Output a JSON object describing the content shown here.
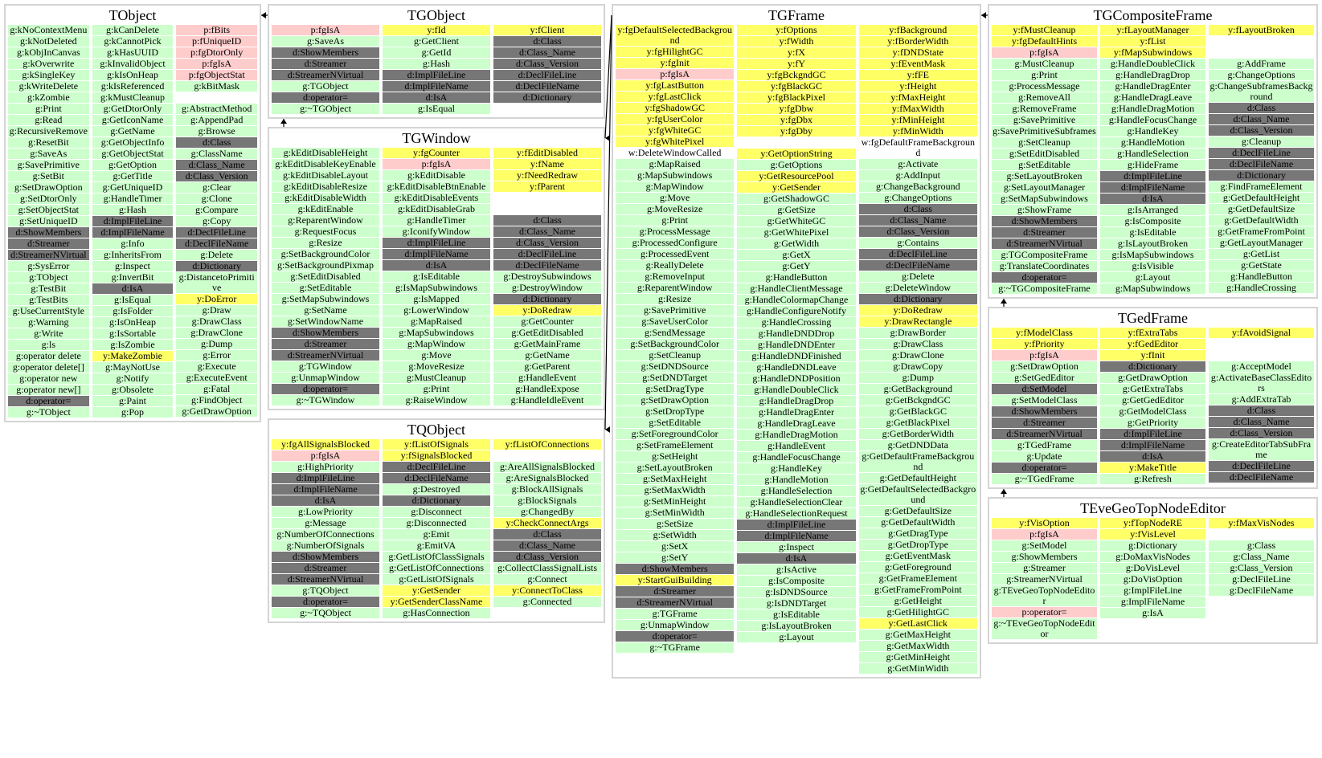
{
  "colors": {
    "g": "#ccffcc",
    "p": "#ffcccc",
    "y": "#ffff66",
    "d": "#777777",
    "w": "transparent",
    "border": "#d4d4d4"
  },
  "classes": [
    {
      "id": "tobject",
      "title": "TObject",
      "columns": [
        [
          "g:kNoContextMenu",
          "g:kNotDeleted",
          "g:kObjInCanvas",
          "g:kOverwrite",
          "g:kSingleKey",
          "g:kWriteDelete",
          "g:kZombie",
          "g:Print",
          "g:Read",
          "g:RecursiveRemove",
          "g:ResetBit",
          "g:SaveAs",
          "g:SavePrimitive",
          "g:SetBit",
          "g:SetDrawOption",
          "g:SetDtorOnly",
          "g:SetObjectStat",
          "g:SetUniqueID",
          "d:ShowMembers",
          "d:Streamer",
          "d:StreamerNVirtual",
          "g:SysError",
          "g:TObject",
          "g:TestBit",
          "g:TestBits",
          "g:UseCurrentStyle",
          "g:Warning",
          "g:Write",
          "g:ls",
          "g:operator delete",
          "g:operator delete[]",
          "g:operator new",
          "g:operator new[]",
          "d:operator=",
          "g:~TObject"
        ],
        [
          "g:kCanDelete",
          "g:kCannotPick",
          "g:kHasUUID",
          "g:kInvalidObject",
          "g:kIsOnHeap",
          "g:kIsReferenced",
          "g:kMustCleanup",
          "g:GetDtorOnly",
          "g:GetIconName",
          "g:GetName",
          "g:GetObjectInfo",
          "g:GetObjectStat",
          "g:GetOption",
          "g:GetTitle",
          "g:GetUniqueID",
          "g:HandleTimer",
          "g:Hash",
          "d:ImplFileLine",
          "d:ImplFileName",
          "g:Info",
          "g:InheritsFrom",
          "g:Inspect",
          "g:InvertBit",
          "d:IsA",
          "g:IsEqual",
          "g:IsFolder",
          "g:IsOnHeap",
          "g:IsSortable",
          "g:IsZombie",
          "y:MakeZombie",
          "g:MayNotUse",
          "g:Notify",
          "g:Obsolete",
          "g:Paint",
          "g:Pop"
        ],
        [
          "p:fBits",
          "p:fUniqueID",
          "p:fgDtorOnly",
          "p:fgIsA",
          "p:fgObjectStat",
          "g:kBitMask",
          null,
          "g:AbstractMethod",
          "g:AppendPad",
          "g:Browse",
          "d:Class",
          "g:ClassName",
          "d:Class_Name",
          "d:Class_Version",
          "g:Clear",
          "g:Clone",
          "g:Compare",
          "g:Copy",
          "d:DeclFileLine",
          "d:DeclFileName",
          "g:Delete",
          "d:Dictionary",
          "g:DistancetoPrimitive",
          "y:DoError",
          "g:Draw",
          "g:DrawClass",
          "g:DrawClone",
          "g:Dump",
          "g:Error",
          "g:Execute",
          "g:ExecuteEvent",
          "g:Fatal",
          "g:FindObject",
          "g:GetDrawOption"
        ]
      ]
    },
    {
      "id": "tgobject",
      "title": "TGObject",
      "columns": [
        [
          "p:fgIsA",
          "g:SaveAs",
          "d:ShowMembers",
          "d:Streamer",
          "d:StreamerNVirtual",
          "g:TGObject",
          "d:operator=",
          "g:~TGObject"
        ],
        [
          "y:fId",
          "g:GetClient",
          "g:GetId",
          "g:Hash",
          "d:ImplFileLine",
          "d:ImplFileName",
          "d:IsA",
          "g:IsEqual"
        ],
        [
          "y:fClient",
          "d:Class",
          "d:Class_Name",
          "d:Class_Version",
          "d:DeclFileLine",
          "d:DeclFileName",
          "d:Dictionary"
        ]
      ]
    },
    {
      "id": "tgwindow",
      "title": "TGWindow",
      "columns": [
        [
          "g:kEditDisableHeight",
          "g:kEditDisableKeyEnable",
          "g:kEditDisableLayout",
          "g:kEditDisableResize",
          "g:kEditDisableWidth",
          "g:kEditEnable",
          "g:ReparentWindow",
          "g:RequestFocus",
          "g:Resize",
          "g:SetBackgroundColor",
          "g:SetBackgroundPixmap",
          "g:SetEditDisabled",
          "g:SetEditable",
          "g:SetMapSubwindows",
          "g:SetName",
          "g:SetWindowName",
          "d:ShowMembers",
          "d:Streamer",
          "d:StreamerNVirtual",
          "g:TGWindow",
          "g:UnmapWindow",
          "d:operator=",
          "g:~TGWindow"
        ],
        [
          "y:fgCounter",
          "p:fgIsA",
          "g:kEditDisable",
          "g:kEditDisableBtnEnable",
          "g:kEditDisableEvents",
          "g:kEditDisableGrab",
          "g:HandleTimer",
          "g:IconifyWindow",
          "d:ImplFileLine",
          "d:ImplFileName",
          "d:IsA",
          "g:IsEditable",
          "g:IsMapSubwindows",
          "g:IsMapped",
          "g:LowerWindow",
          "g:MapRaised",
          "g:MapSubwindows",
          "g:MapWindow",
          "g:Move",
          "g:MoveResize",
          "g:MustCleanup",
          "g:Print",
          "g:RaiseWindow"
        ],
        [
          "y:fEditDisabled",
          "y:fName",
          "y:fNeedRedraw",
          "y:fParent",
          null,
          null,
          "d:Class",
          "d:Class_Name",
          "d:Class_Version",
          "d:DeclFileLine",
          "d:DeclFileName",
          "g:DestroySubwindows",
          "g:DestroyWindow",
          "d:Dictionary",
          "y:DoRedraw",
          "g:GetCounter",
          "g:GetEditDisabled",
          "g:GetMainFrame",
          "g:GetName",
          "g:GetParent",
          "g:HandleEvent",
          "g:HandleExpose",
          "g:HandleIdleEvent"
        ]
      ]
    },
    {
      "id": "tgframe",
      "title": "TGFrame",
      "columns": [
        [
          "y:fgDefaultSelectedBackground",
          "y:fgHilightGC",
          "y:fgInit",
          "p:fgIsA",
          "y:fgLastButton",
          "y:fgLastClick",
          "y:fgShadowGC",
          "y:fgUserColor",
          "y:fgWhiteGC",
          "y:fgWhitePixel",
          "w:DeleteWindowCalled",
          "g:MapRaised",
          "g:MapSubwindows",
          "g:MapWindow",
          "g:Move",
          "g:MoveResize",
          "g:Print",
          "g:ProcessMessage",
          "g:ProcessedConfigure",
          "g:ProcessedEvent",
          "g:ReallyDelete",
          "g:RemoveInput",
          "g:ReparentWindow",
          "g:Resize",
          "g:SavePrimitive",
          "g:SaveUserColor",
          "g:SendMessage",
          "g:SetBackgroundColor",
          "g:SetCleanup",
          "g:SetDNDSource",
          "g:SetDNDTarget",
          "g:SetDragType",
          "g:SetDrawOption",
          "g:SetDropType",
          "g:SetEditable",
          "g:SetForegroundColor",
          "g:SetFrameElement",
          "g:SetHeight",
          "g:SetLayoutBroken",
          "g:SetMaxHeight",
          "g:SetMaxWidth",
          "g:SetMinHeight",
          "g:SetMinWidth",
          "g:SetSize",
          "g:SetWidth",
          "g:SetX",
          "g:SetY",
          "d:ShowMembers",
          "y:StartGuiBuilding",
          "d:Streamer",
          "d:StreamerNVirtual",
          "g:TGFrame",
          "g:UnmapWindow",
          "d:operator=",
          "g:~TGFrame"
        ],
        [
          "y:fOptions",
          "y:fWidth",
          "y:fX",
          "y:fY",
          "y:fgBckgndGC",
          "y:fgBlackGC",
          "y:fgBlackPixel",
          "y:fgDbw",
          "y:fgDbx",
          "y:fgDby",
          null,
          "y:GetOptionString",
          "g:GetOptions",
          "y:GetResourcePool",
          "y:GetSender",
          "g:GetShadowGC",
          "g:GetSize",
          "g:GetWhiteGC",
          "g:GetWhitePixel",
          "g:GetWidth",
          "g:GetX",
          "g:GetY",
          "g:HandleButton",
          "g:HandleClientMessage",
          "g:HandleColormapChange",
          "g:HandleConfigureNotify",
          "g:HandleCrossing",
          "g:HandleDNDDrop",
          "g:HandleDNDEnter",
          "g:HandleDNDFinished",
          "g:HandleDNDLeave",
          "g:HandleDNDPosition",
          "g:HandleDoubleClick",
          "g:HandleDragDrop",
          "g:HandleDragEnter",
          "g:HandleDragLeave",
          "g:HandleDragMotion",
          "g:HandleEvent",
          "g:HandleFocusChange",
          "g:HandleKey",
          "g:HandleMotion",
          "g:HandleSelection",
          "g:HandleSelectionClear",
          "g:HandleSelectionRequest",
          "d:ImplFileLine",
          "d:ImplFileName",
          "g:Inspect",
          "d:IsA",
          "g:IsActive",
          "g:IsComposite",
          "g:IsDNDSource",
          "g:IsDNDTarget",
          "g:IsEditable",
          "g:IsLayoutBroken",
          "g:Layout"
        ],
        [
          "y:fBackground",
          "y:fBorderWidth",
          "y:fDNDState",
          "y:fEventMask",
          "y:fFE",
          "y:fHeight",
          "y:fMaxHeight",
          "y:fMaxWidth",
          "y:fMinHeight",
          "y:fMinWidth",
          "w:fgDefaultFrameBackground",
          "g:Activate",
          "g:AddInput",
          "g:ChangeBackground",
          "g:ChangeOptions",
          "d:Class",
          "d:Class_Name",
          "d:Class_Version",
          "g:Contains",
          "d:DeclFileLine",
          "d:DeclFileName",
          "g:Delete",
          "g:DeleteWindow",
          "d:Dictionary",
          "y:DoRedraw",
          "y:DrawRectangle",
          "g:DrawBorder",
          "g:DrawClass",
          "g:DrawClone",
          "g:DrawCopy",
          "g:Dump",
          "g:GetBackground",
          "g:GetBckgndGC",
          "g:GetBlackGC",
          "g:GetBlackPixel",
          "g:GetBorderWidth",
          "g:GetDNDData",
          "g:GetDefaultFrameBackground",
          "g:GetDefaultHeight",
          "g:GetDefaultSelectedBackground",
          "g:GetDefaultSize",
          "g:GetDefaultWidth",
          "g:GetDragType",
          "g:GetDropType",
          "g:GetEventMask",
          "g:GetForeground",
          "g:GetFrameElement",
          "g:GetFrameFromPoint",
          "g:GetHeight",
          "g:GetHilightGC",
          "y:GetLastClick",
          "g:GetMaxHeight",
          "g:GetMaxWidth",
          "g:GetMinHeight",
          "g:GetMinWidth"
        ]
      ]
    },
    {
      "id": "tgcompositeframe",
      "title": "TGCompositeFrame",
      "columns": [
        [
          "y:fMustCleanup",
          "y:fgDefaultHints",
          "p:fgIsA",
          "g:MustCleanup",
          "g:Print",
          "g:ProcessMessage",
          "g:RemoveAll",
          "g:RemoveFrame",
          "g:SavePrimitive",
          "g:SavePrimitiveSubframes",
          "g:SetCleanup",
          "g:SetEditDisabled",
          "g:SetEditable",
          "g:SetLayoutBroken",
          "g:SetLayoutManager",
          "g:SetMapSubwindows",
          "g:ShowFrame",
          "d:ShowMembers",
          "d:Streamer",
          "d:StreamerNVirtual",
          "g:TGCompositeFrame",
          "g:TranslateCoordinates",
          "d:operator=",
          "g:~TGCompositeFrame"
        ],
        [
          "y:fLayoutManager",
          "y:fList",
          "y:fMapSubwindows",
          "g:HandleDoubleClick",
          "g:HandleDragDrop",
          "g:HandleDragEnter",
          "g:HandleDragLeave",
          "g:HandleDragMotion",
          "g:HandleFocusChange",
          "g:HandleKey",
          "g:HandleMotion",
          "g:HandleSelection",
          "g:HideFrame",
          "d:ImplFileLine",
          "d:ImplFileName",
          "d:IsA",
          "g:IsArranged",
          "g:IsComposite",
          "g:IsEditable",
          "g:IsLayoutBroken",
          "g:IsMapSubwindows",
          "g:IsVisible",
          "g:Layout",
          "g:MapSubwindows"
        ],
        [
          "y:fLayoutBroken",
          null,
          null,
          "g:AddFrame",
          "g:ChangeOptions",
          "g:ChangeSubframesBackground",
          "d:Class",
          "d:Class_Name",
          "d:Class_Version",
          "g:Cleanup",
          "d:DeclFileLine",
          "d:DeclFileName",
          "d:Dictionary",
          "g:FindFrameElement",
          "g:GetDefaultHeight",
          "g:GetDefaultSize",
          "g:GetDefaultWidth",
          "g:GetFrameFromPoint",
          "g:GetLayoutManager",
          "g:GetList",
          "g:GetState",
          "g:HandleButton",
          "g:HandleCrossing"
        ]
      ]
    },
    {
      "id": "tgedframe",
      "title": "TGedFrame",
      "columns": [
        [
          "y:fModelClass",
          "y:fPriority",
          "p:fgIsA",
          "g:SetDrawOption",
          "g:SetGedEditor",
          "d:SetModel",
          "g:SetModelClass",
          "d:ShowMembers",
          "d:Streamer",
          "d:StreamerNVirtual",
          "g:TGedFrame",
          "g:Update",
          "d:operator=",
          "g:~TGedFrame"
        ],
        [
          "y:fExtraTabs",
          "y:fGedEditor",
          "y:fInit",
          "d:Dictionary",
          "g:GetDrawOption",
          "g:GetExtraTabs",
          "g:GetGedEditor",
          "g:GetModelClass",
          "g:GetPriority",
          "d:ImplFileLine",
          "d:ImplFileName",
          "d:IsA",
          "y:MakeTitle",
          "g:Refresh"
        ],
        [
          "y:fAvoidSignal",
          null,
          null,
          "g:AcceptModel",
          "g:ActivateBaseClassEditors",
          "g:AddExtraTab",
          "d:Class",
          "d:Class_Name",
          "d:Class_Version",
          "g:CreateEditorTabSubFrame",
          "d:DeclFileLine",
          "d:DeclFileName"
        ]
      ]
    },
    {
      "id": "teve",
      "title": "TEveGeoTopNodeEditor",
      "columns": [
        [
          "y:fVisOption",
          "p:fgIsA",
          "g:SetModel",
          "g:ShowMembers",
          "g:Streamer",
          "g:StreamerNVirtual",
          "g:TEveGeoTopNodeEditor",
          "p:operator=",
          "g:~TEveGeoTopNodeEditor"
        ],
        [
          "y:fTopNodeRE",
          "y:fVisLevel",
          "g:Dictionary",
          "g:DoMaxVisNodes",
          "g:DoVisLevel",
          "g:DoVisOption",
          "g:ImplFileLine",
          "g:ImplFileName",
          "g:IsA"
        ],
        [
          "y:fMaxVisNodes",
          null,
          "g:Class",
          "g:Class_Name",
          "g:Class_Version",
          "g:DeclFileLine",
          "g:DeclFileName"
        ]
      ]
    },
    {
      "id": "tqobject",
      "title": "TQObject",
      "columns": [
        [
          "y:fgAllSignalsBlocked",
          "p:fgIsA",
          "g:HighPriority",
          "d:ImplFileLine",
          "d:ImplFileName",
          "d:IsA",
          "g:LowPriority",
          "g:Message",
          "g:NumberOfConnections",
          "g:NumberOfSignals",
          "d:ShowMembers",
          "d:Streamer",
          "d:StreamerNVirtual",
          "g:TQObject",
          "d:operator=",
          "g:~TQObject"
        ],
        [
          "y:fListOfSignals",
          "y:fSignalsBlocked",
          "d:DeclFileLine",
          "d:DeclFileName",
          "g:Destroyed",
          "d:Dictionary",
          "g:Disconnect",
          "g:Disconnected",
          "g:Emit",
          "g:EmitVA",
          "g:GetListOfClassSignals",
          "g:GetListOfConnections",
          "g:GetListOfSignals",
          "y:GetSender",
          "y:GetSenderClassName",
          "g:HasConnection"
        ],
        [
          "y:fListOfConnections",
          null,
          "g:AreAllSignalsBlocked",
          "g:AreSignalsBlocked",
          "g:BlockAllSignals",
          "g:BlockSignals",
          "g:ChangedBy",
          "y:CheckConnectArgs",
          "d:Class",
          "d:Class_Name",
          "d:Class_Version",
          "g:CollectClassSignalLists",
          "g:Connect",
          "y:ConnectToClass",
          "g:Connected"
        ]
      ]
    }
  ],
  "inheritance": [
    [
      "tgobject",
      "tobject"
    ],
    [
      "tgwindow",
      "tgobject"
    ],
    [
      "tgframe",
      "tgwindow"
    ],
    [
      "tgframe",
      "tqobject"
    ],
    [
      "tgcompositeframe",
      "tgframe"
    ],
    [
      "tgedframe",
      "tgcompositeframe"
    ],
    [
      "teve",
      "tgedframe"
    ]
  ]
}
